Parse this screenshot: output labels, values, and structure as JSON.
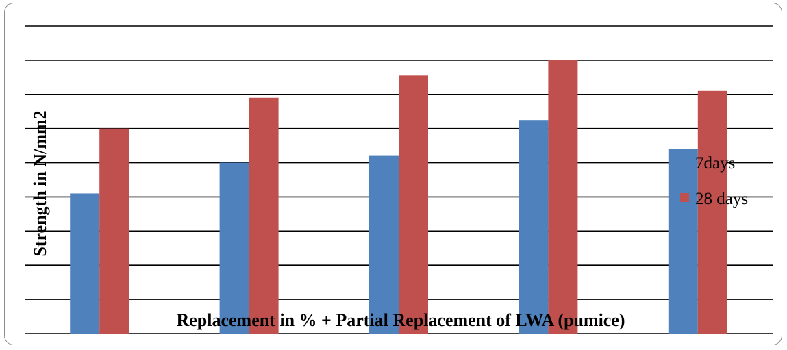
{
  "chart_data": {
    "type": "bar",
    "title": "",
    "xlabel": "Replacement in % + Partial Replacement of LWA (pumice)",
    "ylabel": "Strength in N/mm2",
    "categories": [
      "",
      "",
      "",
      "",
      ""
    ],
    "series": [
      {
        "name": "7days",
        "color": "#4F81BD",
        "values": [
          4.1,
          5.0,
          5.2,
          6.25,
          5.4
        ]
      },
      {
        "name": "28 days",
        "color": "#C0504D",
        "values": [
          6.0,
          6.9,
          7.55,
          8.0,
          7.1
        ]
      }
    ],
    "ylim": [
      0,
      9
    ],
    "grid": true,
    "legend": "right"
  }
}
